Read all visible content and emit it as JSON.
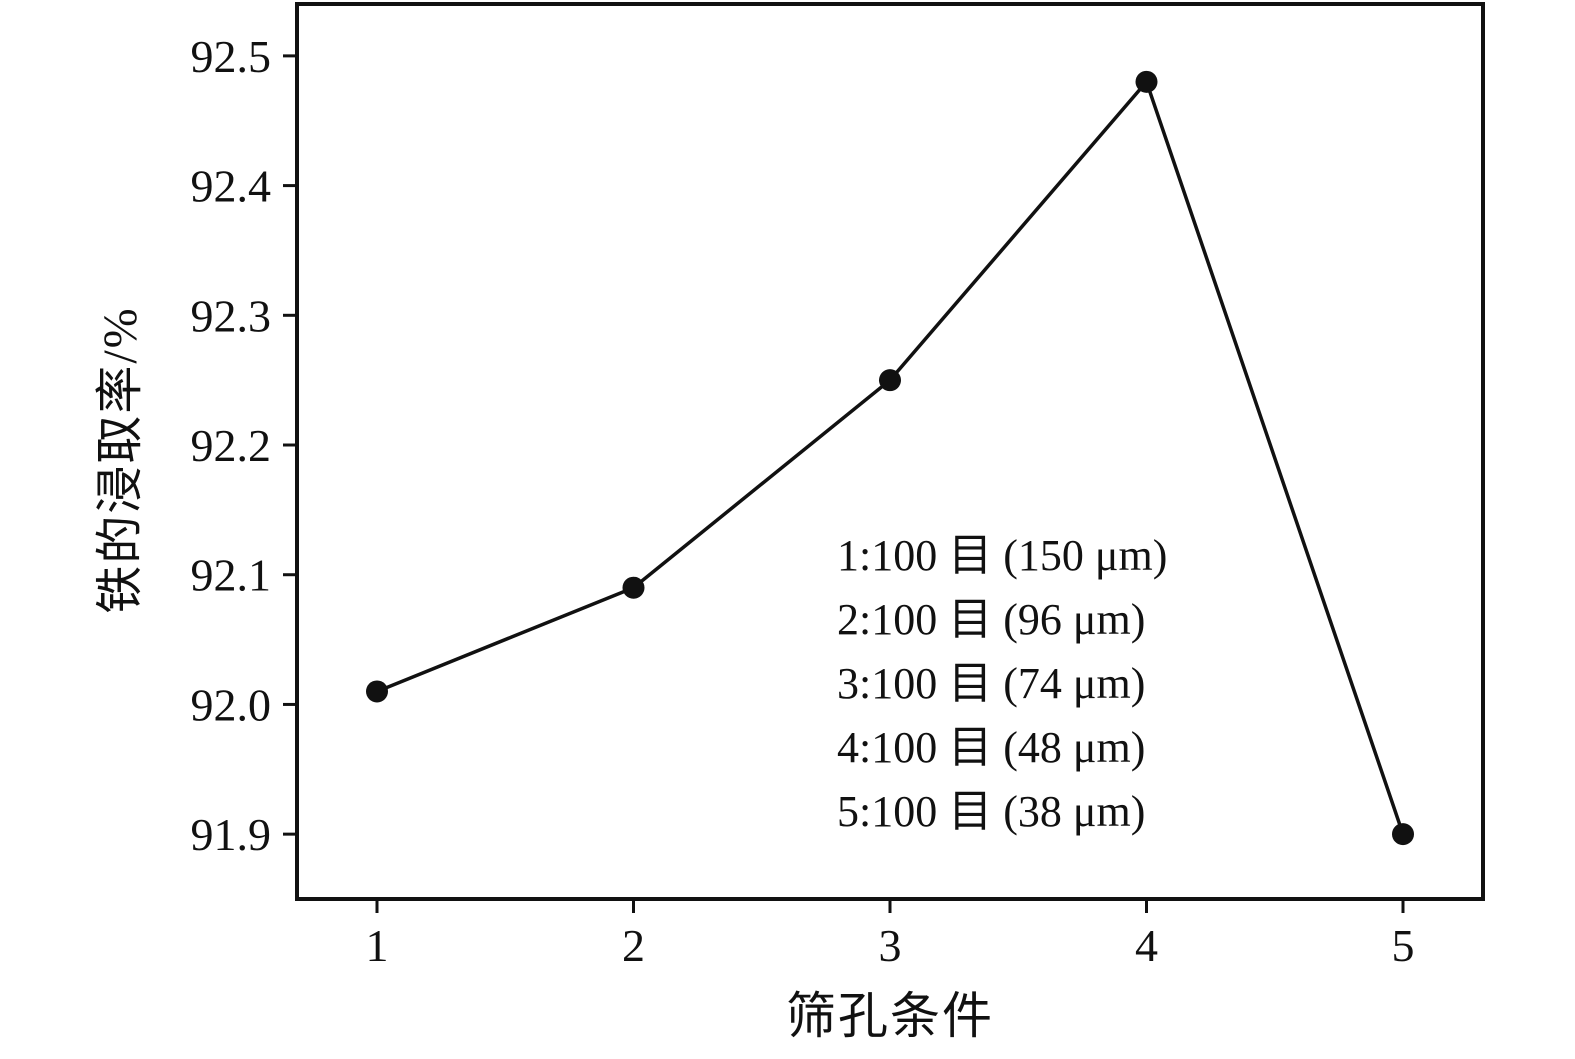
{
  "chart_data": {
    "type": "line",
    "x": [
      1,
      2,
      3,
      4,
      5
    ],
    "values": [
      92.01,
      92.09,
      92.25,
      92.48,
      91.9
    ],
    "series_name": "铁的浸取率",
    "title": "",
    "xlabel": "筛孔条件",
    "ylabel": "铁的浸取率/%",
    "xticks": [
      1,
      2,
      3,
      4,
      5
    ],
    "yticks": [
      91.9,
      92.0,
      92.1,
      92.2,
      92.3,
      92.4,
      92.5
    ],
    "ylim": [
      91.85,
      92.54
    ],
    "grid": false,
    "legend_position": "none",
    "marker": "filled-circle",
    "line_color": "#111111",
    "marker_color": "#111111",
    "annotations": [
      "1:100 目 (150 μm)",
      "2:100 目 (96 μm)",
      "3:100 目 (74 μm)",
      "4:100 目 (48 μm)",
      "5:100 目 (38 μm)"
    ]
  }
}
